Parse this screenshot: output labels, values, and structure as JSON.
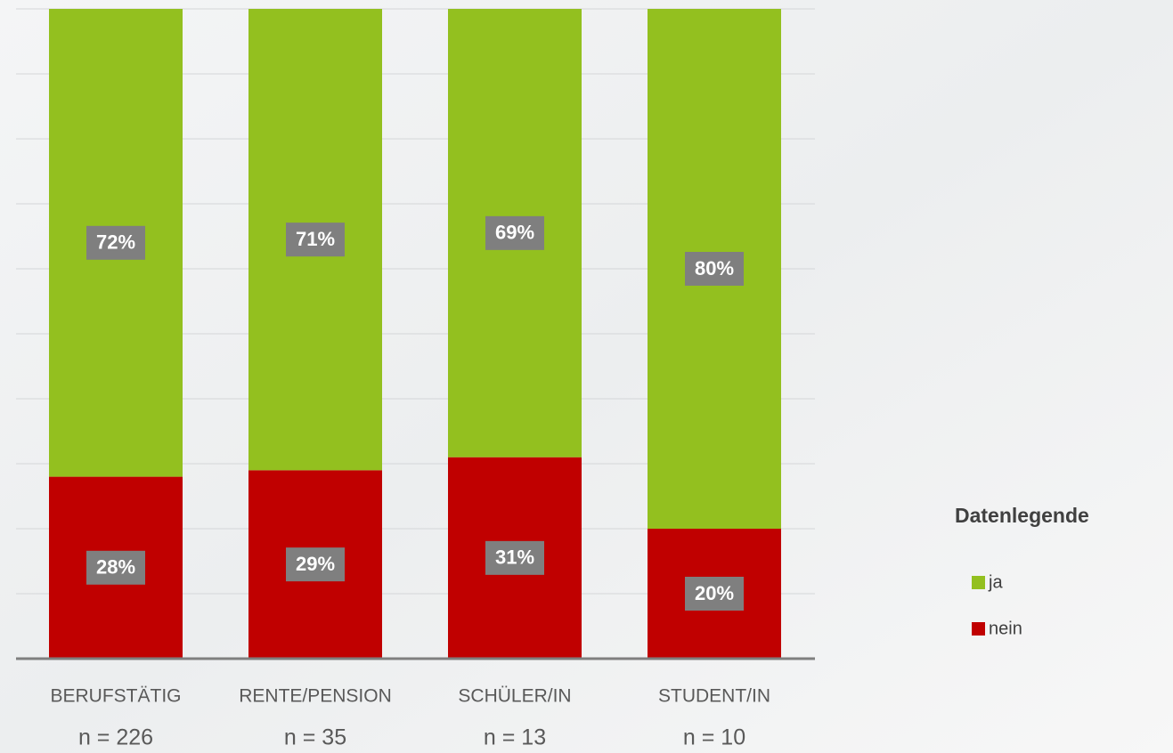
{
  "chart_data": {
    "type": "stacked_bar",
    "categories": [
      "BERUFSTÄTIG",
      "RENTE/PENSION",
      "SCHÜLER/IN",
      "STUDENT/IN"
    ],
    "n_labels": [
      "n = 226",
      "n = 35",
      "n = 13",
      "n = 10"
    ],
    "series": [
      {
        "name": "ja",
        "color": "#93c01f",
        "values": [
          72,
          71,
          69,
          80
        ],
        "value_labels": [
          "72%",
          "71%",
          "69%",
          "80%"
        ]
      },
      {
        "name": "nein",
        "color": "#c00000",
        "values": [
          28,
          29,
          31,
          20
        ],
        "value_labels": [
          "28%",
          "29%",
          "31%",
          "20%"
        ]
      }
    ],
    "ylim": [
      0,
      100
    ],
    "yticks": [
      0,
      10,
      20,
      30,
      40,
      50,
      60,
      70,
      80,
      90,
      100
    ],
    "grid": true,
    "legend_title": "Datenlegende",
    "legend": "right"
  }
}
